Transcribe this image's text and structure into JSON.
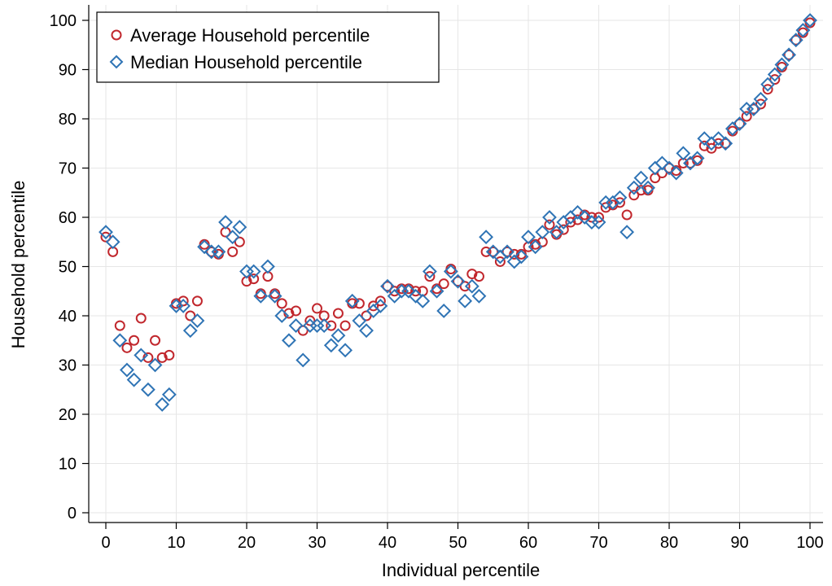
{
  "chart_data": {
    "type": "scatter",
    "xlabel": "Individual percentile",
    "ylabel": "Household percentile",
    "xlim": [
      0,
      100
    ],
    "ylim": [
      0,
      100
    ],
    "xticks": [
      0,
      10,
      20,
      30,
      40,
      50,
      60,
      70,
      80,
      90,
      100
    ],
    "yticks": [
      0,
      10,
      20,
      30,
      40,
      50,
      60,
      70,
      80,
      90,
      100
    ],
    "grid": true,
    "legend_position": "top-left",
    "series": [
      {
        "name": "Average Household percentile",
        "marker": "circle",
        "color": "#c1272d",
        "points": [
          [
            0,
            56
          ],
          [
            1,
            53
          ],
          [
            2,
            38
          ],
          [
            3,
            33.5
          ],
          [
            4,
            35
          ],
          [
            5,
            39.5
          ],
          [
            6,
            31.5
          ],
          [
            7,
            35
          ],
          [
            8,
            31.5
          ],
          [
            9,
            32
          ],
          [
            10,
            42.5
          ],
          [
            11,
            43
          ],
          [
            12,
            40
          ],
          [
            13,
            43
          ],
          [
            14,
            54.5
          ],
          [
            15,
            53
          ],
          [
            16,
            52.5
          ],
          [
            17,
            57
          ],
          [
            18,
            53
          ],
          [
            19,
            55
          ],
          [
            20,
            47
          ],
          [
            21,
            47.5
          ],
          [
            22,
            44.5
          ],
          [
            23,
            48
          ],
          [
            24,
            44.5
          ],
          [
            25,
            42.5
          ],
          [
            26,
            40.5
          ],
          [
            27,
            41
          ],
          [
            28,
            37
          ],
          [
            29,
            39
          ],
          [
            30,
            41.5
          ],
          [
            31,
            40
          ],
          [
            32,
            38
          ],
          [
            33,
            40.5
          ],
          [
            34,
            38
          ],
          [
            35,
            42.5
          ],
          [
            36,
            42.5
          ],
          [
            37,
            40
          ],
          [
            38,
            42
          ],
          [
            39,
            43
          ],
          [
            40,
            46
          ],
          [
            41,
            45
          ],
          [
            42,
            45.5
          ],
          [
            43,
            45.5
          ],
          [
            44,
            45
          ],
          [
            45,
            45
          ],
          [
            46,
            48
          ],
          [
            47,
            45.5
          ],
          [
            48,
            46.5
          ],
          [
            49,
            49.5
          ],
          [
            50,
            47
          ],
          [
            51,
            46
          ],
          [
            52,
            48.5
          ],
          [
            53,
            48
          ],
          [
            54,
            53
          ],
          [
            55,
            53
          ],
          [
            56,
            51
          ],
          [
            57,
            53
          ],
          [
            58,
            52.5
          ],
          [
            59,
            52.5
          ],
          [
            60,
            54
          ],
          [
            61,
            54.5
          ],
          [
            62,
            55
          ],
          [
            63,
            58.5
          ],
          [
            64,
            56.5
          ],
          [
            65,
            57.5
          ],
          [
            66,
            59
          ],
          [
            67,
            59.5
          ],
          [
            68,
            60.5
          ],
          [
            69,
            60
          ],
          [
            70,
            60
          ],
          [
            71,
            62
          ],
          [
            72,
            62.5
          ],
          [
            73,
            63
          ],
          [
            74,
            60.5
          ],
          [
            75,
            64.5
          ],
          [
            76,
            65.5
          ],
          [
            77,
            65.5
          ],
          [
            78,
            68
          ],
          [
            79,
            69
          ],
          [
            80,
            70
          ],
          [
            81,
            69.5
          ],
          [
            82,
            71
          ],
          [
            83,
            71
          ],
          [
            84,
            71.5
          ],
          [
            85,
            74.5
          ],
          [
            86,
            74
          ],
          [
            87,
            75
          ],
          [
            88,
            75
          ],
          [
            89,
            77.5
          ],
          [
            90,
            79
          ],
          [
            91,
            80.5
          ],
          [
            92,
            82
          ],
          [
            93,
            83
          ],
          [
            94,
            86
          ],
          [
            95,
            88
          ],
          [
            96,
            90.5
          ],
          [
            97,
            93
          ],
          [
            98,
            96
          ],
          [
            99,
            97.5
          ],
          [
            100,
            99.5
          ]
        ]
      },
      {
        "name": "Median Household percentile",
        "marker": "diamond",
        "color": "#2f74b5",
        "points": [
          [
            0,
            57
          ],
          [
            1,
            55
          ],
          [
            2,
            35
          ],
          [
            3,
            29
          ],
          [
            4,
            27
          ],
          [
            5,
            32
          ],
          [
            6,
            25
          ],
          [
            7,
            30
          ],
          [
            8,
            22
          ],
          [
            9,
            24
          ],
          [
            10,
            42
          ],
          [
            11,
            42
          ],
          [
            12,
            37
          ],
          [
            13,
            39
          ],
          [
            14,
            54
          ],
          [
            15,
            53
          ],
          [
            16,
            53
          ],
          [
            17,
            59
          ],
          [
            18,
            56
          ],
          [
            19,
            58
          ],
          [
            20,
            49
          ],
          [
            21,
            49
          ],
          [
            22,
            44
          ],
          [
            23,
            50
          ],
          [
            24,
            44
          ],
          [
            25,
            40
          ],
          [
            26,
            35
          ],
          [
            27,
            38
          ],
          [
            28,
            31
          ],
          [
            29,
            38
          ],
          [
            30,
            38
          ],
          [
            31,
            38
          ],
          [
            32,
            34
          ],
          [
            33,
            36
          ],
          [
            34,
            33
          ],
          [
            35,
            43
          ],
          [
            36,
            39
          ],
          [
            37,
            37
          ],
          [
            38,
            41
          ],
          [
            39,
            42
          ],
          [
            40,
            46
          ],
          [
            41,
            44
          ],
          [
            42,
            45
          ],
          [
            43,
            45
          ],
          [
            44,
            44
          ],
          [
            45,
            43
          ],
          [
            46,
            49
          ],
          [
            47,
            45
          ],
          [
            48,
            41
          ],
          [
            49,
            49
          ],
          [
            50,
            47
          ],
          [
            51,
            43
          ],
          [
            52,
            46
          ],
          [
            53,
            44
          ],
          [
            54,
            56
          ],
          [
            55,
            53
          ],
          [
            56,
            52
          ],
          [
            57,
            53
          ],
          [
            58,
            51
          ],
          [
            59,
            52
          ],
          [
            60,
            56
          ],
          [
            61,
            54
          ],
          [
            62,
            57
          ],
          [
            63,
            60
          ],
          [
            64,
            57
          ],
          [
            65,
            59
          ],
          [
            66,
            60
          ],
          [
            67,
            61
          ],
          [
            68,
            60
          ],
          [
            69,
            59
          ],
          [
            70,
            59
          ],
          [
            71,
            63
          ],
          [
            72,
            63
          ],
          [
            73,
            64
          ],
          [
            74,
            57
          ],
          [
            75,
            66
          ],
          [
            76,
            68
          ],
          [
            77,
            66
          ],
          [
            78,
            70
          ],
          [
            79,
            71
          ],
          [
            80,
            70
          ],
          [
            81,
            69
          ],
          [
            82,
            73
          ],
          [
            83,
            71
          ],
          [
            84,
            72
          ],
          [
            85,
            76
          ],
          [
            86,
            75
          ],
          [
            87,
            76
          ],
          [
            88,
            75
          ],
          [
            89,
            78
          ],
          [
            90,
            79
          ],
          [
            91,
            82
          ],
          [
            92,
            82
          ],
          [
            93,
            84
          ],
          [
            94,
            87
          ],
          [
            95,
            89
          ],
          [
            96,
            91
          ],
          [
            97,
            93
          ],
          [
            98,
            96
          ],
          [
            99,
            98
          ],
          [
            100,
            100
          ]
        ]
      }
    ]
  }
}
